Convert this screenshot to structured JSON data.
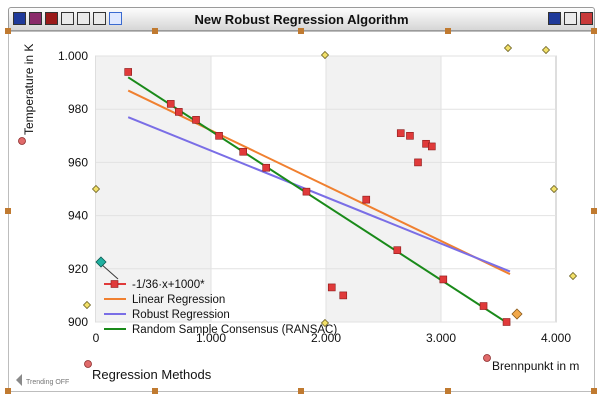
{
  "window": {
    "title": "New Robust Regression Algorithm",
    "footer_label": "Regression Methods",
    "trending_label": "Trending OFF"
  },
  "colors": {
    "data": "#e03a3a",
    "linear": "#f08030",
    "robust": "#7a6ee6",
    "ransac": "#1a8a1a",
    "frame_handle": "#c07a30"
  },
  "chart_data": {
    "type": "scatter",
    "xlabel": "Brennpunkt in m",
    "ylabel": "Temperature in K",
    "xlim": [
      0,
      4.0
    ],
    "ylim": [
      900,
      1000
    ],
    "xticks": [
      "0",
      "1.000",
      "2.000",
      "3.000",
      "4.000"
    ],
    "yticks": [
      "900",
      "920",
      "940",
      "960",
      "980",
      "1.000"
    ],
    "grid": true,
    "legend_position": "bottom-left",
    "series": [
      {
        "name": "-1/36·x+1000*",
        "type": "scatter",
        "color": "#e03a3a",
        "points": [
          [
            0.28,
            994
          ],
          [
            0.65,
            982
          ],
          [
            0.72,
            979
          ],
          [
            0.87,
            976
          ],
          [
            1.07,
            970
          ],
          [
            1.28,
            964
          ],
          [
            1.48,
            958
          ],
          [
            1.83,
            949
          ],
          [
            2.05,
            913
          ],
          [
            2.15,
            910
          ],
          [
            2.35,
            946
          ],
          [
            2.62,
            927
          ],
          [
            2.65,
            971
          ],
          [
            2.73,
            970
          ],
          [
            2.8,
            960
          ],
          [
            2.87,
            967
          ],
          [
            2.92,
            966
          ],
          [
            3.02,
            916
          ],
          [
            3.37,
            906
          ],
          [
            3.57,
            900
          ]
        ]
      },
      {
        "name": "Linear Regression",
        "type": "line",
        "color": "#f08030",
        "points": [
          [
            0.28,
            987
          ],
          [
            3.6,
            918
          ]
        ]
      },
      {
        "name": "Robust Regression",
        "type": "line",
        "color": "#7a6ee6",
        "points": [
          [
            0.28,
            977
          ],
          [
            3.6,
            919
          ]
        ]
      },
      {
        "name": "Random Sample Consensus (RANSAC)",
        "type": "line",
        "color": "#1a8a1a",
        "points": [
          [
            0.28,
            992
          ],
          [
            3.6,
            899
          ]
        ]
      }
    ]
  }
}
